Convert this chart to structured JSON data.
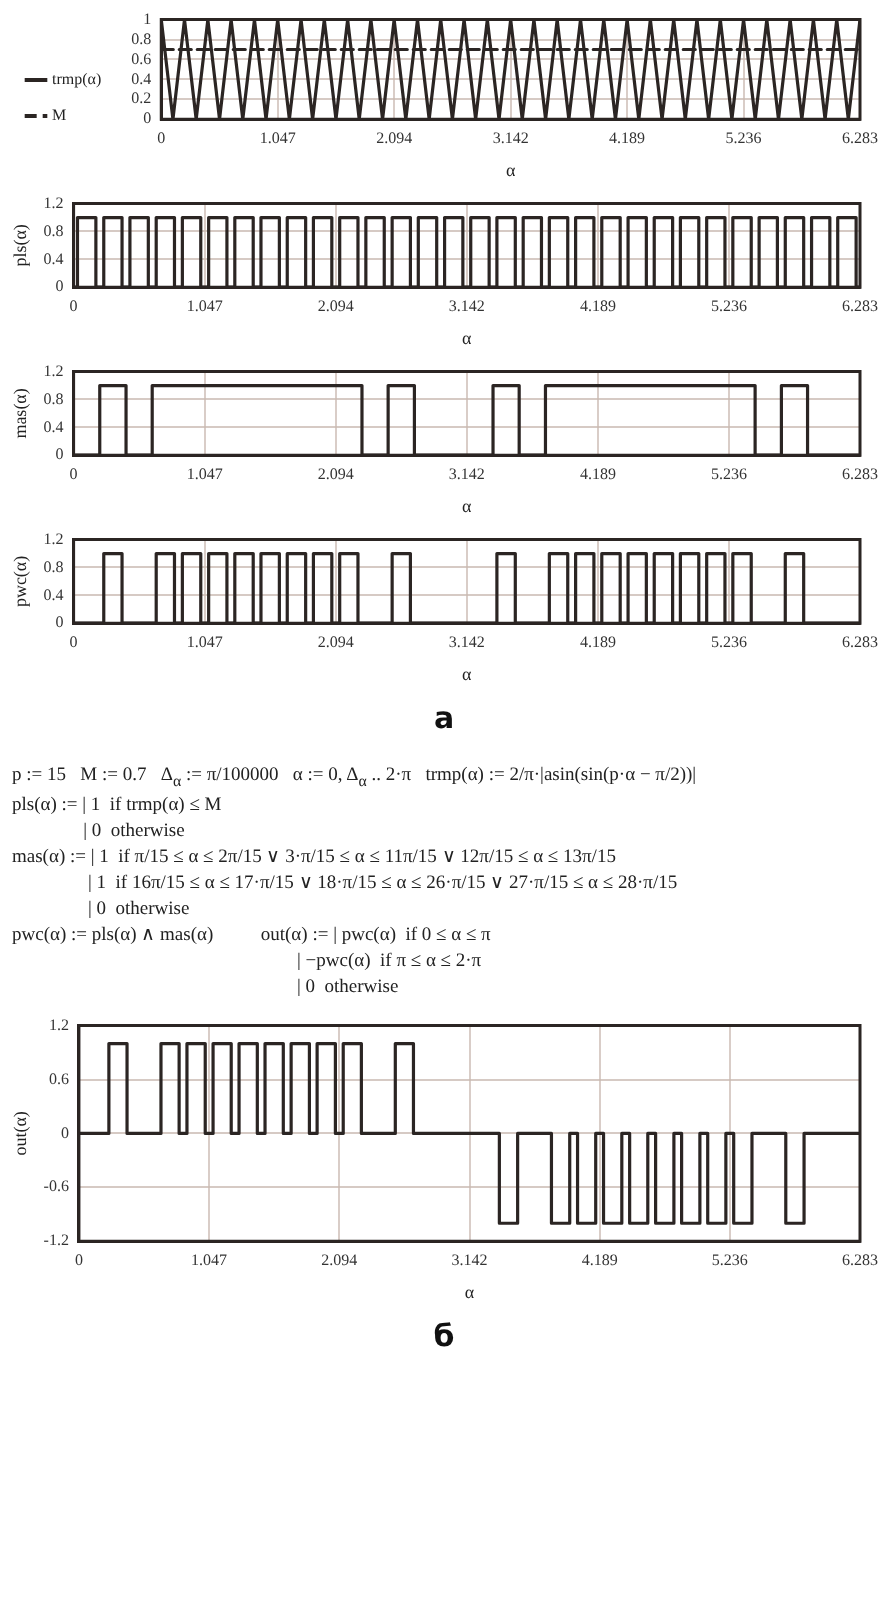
{
  "chart_data": [
    {
      "type": "line",
      "xlabel": "α",
      "legend": "left",
      "grid": true,
      "marker": "none",
      "xlim": [
        0,
        6.283
      ],
      "xticks": [
        0,
        1.047,
        2.094,
        3.142,
        4.189,
        5.236,
        6.283
      ],
      "ylim": [
        0,
        1
      ],
      "yticks": [
        0,
        0.2,
        0.4,
        0.6,
        0.8,
        1
      ],
      "series": [
        {
          "name": "trmp(α)",
          "color": "#2b2523",
          "line_style": "solid",
          "x": [
            0,
            0.105,
            0.209,
            0.314,
            0.419,
            0.524,
            0.628,
            0.733,
            0.838,
            0.942,
            1.047,
            1.152,
            1.257,
            1.361,
            1.466,
            1.571,
            1.676,
            1.78,
            1.885,
            1.99,
            2.094,
            2.199,
            2.304,
            2.409,
            2.513,
            2.618,
            2.723,
            2.827,
            2.932,
            3.037,
            3.142,
            3.246,
            3.351,
            3.456,
            3.56,
            3.665,
            3.77,
            3.875,
            3.979,
            4.084,
            4.189,
            4.294,
            4.398,
            4.503,
            4.608,
            4.712,
            4.817,
            4.922,
            5.027,
            5.131,
            5.236,
            5.341,
            5.445,
            5.55,
            5.655,
            5.76,
            5.864,
            5.969,
            6.074,
            6.178,
            6.283
          ],
          "values": [
            1,
            0,
            1,
            0,
            1,
            0,
            1,
            0,
            1,
            0,
            1,
            0,
            1,
            0,
            1,
            0,
            1,
            0,
            1,
            0,
            1,
            0,
            1,
            0,
            1,
            0,
            1,
            0,
            1,
            0,
            1,
            0,
            1,
            0,
            1,
            0,
            1,
            0,
            1,
            0,
            1,
            0,
            1,
            0,
            1,
            0,
            1,
            0,
            1,
            0,
            1,
            0,
            1,
            0,
            1,
            0,
            1,
            0,
            1,
            0,
            1
          ]
        },
        {
          "name": "M",
          "color": "#2b2523",
          "line_style": "dashed",
          "x": [
            0,
            6.283
          ],
          "values": [
            0.7,
            0.7
          ]
        }
      ]
    },
    {
      "type": "step",
      "ylabel": "pls(α)",
      "xlabel": "α",
      "legend": false,
      "grid": true,
      "marker": "none",
      "xlim": [
        0,
        6.283
      ],
      "xticks": [
        0,
        1.047,
        2.094,
        3.142,
        4.189,
        5.236,
        6.283
      ],
      "ylim": [
        0,
        1.2
      ],
      "yticks": [
        0,
        0.4,
        0.8,
        1.2
      ],
      "series": [
        {
          "color": "#2b2523",
          "x": [
            0,
            0.031,
            0.178,
            0.241,
            0.387,
            0.45,
            0.597,
            0.66,
            0.806,
            0.869,
            1.016,
            1.079,
            1.225,
            1.288,
            1.435,
            1.497,
            1.644,
            1.707,
            1.854,
            1.916,
            2.063,
            2.126,
            2.272,
            2.335,
            2.482,
            2.545,
            2.691,
            2.754,
            2.901,
            2.964,
            3.11,
            3.173,
            3.32,
            3.382,
            3.529,
            3.592,
            3.738,
            3.801,
            3.948,
            4.011,
            4.157,
            4.22,
            4.367,
            4.43,
            4.576,
            4.639,
            4.786,
            4.848,
            4.995,
            5.058,
            5.204,
            5.267,
            5.414,
            5.477,
            5.623,
            5.686,
            5.833,
            5.896,
            6.042,
            6.105,
            6.252,
            6.283
          ],
          "values": [
            0,
            1,
            0,
            1,
            0,
            1,
            0,
            1,
            0,
            1,
            0,
            1,
            0,
            1,
            0,
            1,
            0,
            1,
            0,
            1,
            0,
            1,
            0,
            1,
            0,
            1,
            0,
            1,
            0,
            1,
            0,
            1,
            0,
            1,
            0,
            1,
            0,
            1,
            0,
            1,
            0,
            1,
            0,
            1,
            0,
            1,
            0,
            1,
            0,
            1,
            0,
            1,
            0,
            1,
            0,
            1,
            0,
            1,
            0,
            1,
            0,
            0
          ]
        }
      ]
    },
    {
      "type": "step",
      "ylabel": "mas(α)",
      "xlabel": "α",
      "legend": false,
      "grid": true,
      "marker": "none",
      "xlim": [
        0,
        6.283
      ],
      "xticks": [
        0,
        1.047,
        2.094,
        3.142,
        4.189,
        5.236,
        6.283
      ],
      "ylim": [
        0,
        1.2
      ],
      "yticks": [
        0,
        0.4,
        0.8,
        1.2
      ],
      "series": [
        {
          "color": "#2b2523",
          "x": [
            0,
            0.209,
            0.419,
            0.628,
            2.304,
            2.513,
            2.723,
            3.351,
            3.56,
            3.77,
            5.445,
            5.655,
            5.864,
            6.283
          ],
          "values": [
            0,
            1,
            0,
            1,
            0,
            1,
            0,
            1,
            0,
            1,
            0,
            1,
            0,
            0
          ]
        }
      ]
    },
    {
      "type": "step",
      "ylabel": "pwc(α)",
      "xlabel": "α",
      "legend": false,
      "grid": true,
      "marker": "none",
      "xlim": [
        0,
        6.283
      ],
      "xticks": [
        0,
        1.047,
        2.094,
        3.142,
        4.189,
        5.236,
        6.283
      ],
      "ylim": [
        0,
        1.2
      ],
      "yticks": [
        0,
        0.4,
        0.8,
        1.2
      ],
      "annotations": [
        "а"
      ],
      "series": [
        {
          "color": "#2b2523",
          "x": [
            0,
            0.241,
            0.387,
            0.66,
            0.806,
            0.869,
            1.016,
            1.079,
            1.225,
            1.288,
            1.435,
            1.497,
            1.644,
            1.707,
            1.854,
            1.916,
            2.063,
            2.126,
            2.272,
            2.545,
            2.691,
            3.382,
            3.529,
            3.801,
            3.948,
            4.011,
            4.157,
            4.22,
            4.367,
            4.43,
            4.576,
            4.639,
            4.786,
            4.848,
            4.995,
            5.058,
            5.204,
            5.267,
            5.414,
            5.686,
            5.833,
            6.283
          ],
          "values": [
            0,
            1,
            0,
            1,
            0,
            1,
            0,
            1,
            0,
            1,
            0,
            1,
            0,
            1,
            0,
            1,
            0,
            1,
            0,
            1,
            0,
            1,
            0,
            1,
            0,
            1,
            0,
            1,
            0,
            1,
            0,
            1,
            0,
            1,
            0,
            1,
            0,
            1,
            0,
            1,
            0,
            0
          ]
        }
      ]
    },
    {
      "type": "step",
      "ylabel": "out(α)",
      "xlabel": "α",
      "legend": false,
      "grid": true,
      "marker": "none",
      "subtitle": "p := 15   M := 0.7   Δ$_{α}$ := π/100000   α := 0, Δ$_{α}$ .. 2·π   trmp(α) := 2/π·|asin(sin(p·α − π/2))|\npls(α) := | 1  if trmp(α) ≤ M\n               | 0  otherwise\nmas(α) := | 1  if π/15 ≤ α ≤ 2π/15 ∨ 3·π/15 ≤ α ≤ 11π/15 ∨ 12π/15 ≤ α ≤ 13π/15\n                | 1  if 16π/15 ≤ α ≤ 17·π/15 ∨ 18·π/15 ≤ α ≤ 26·π/15 ∨ 27·π/15 ≤ α ≤ 28·π/15\n                | 0  otherwise\npwc(α) := pls(α) ∧ mas(α)          out(α) := | pwc(α)  if 0 ≤ α ≤ π\n                                                            | −pwc(α)  if π ≤ α ≤ 2·π\n                                                            | 0  otherwise",
      "xlim": [
        0,
        6.283
      ],
      "xticks": [
        0,
        1.047,
        2.094,
        3.142,
        4.189,
        5.236,
        6.283
      ],
      "ylim": [
        -1.2,
        1.2
      ],
      "yticks": [
        -1.2,
        -0.6,
        0,
        0.6,
        1.2
      ],
      "annotations": [
        "б"
      ],
      "series": [
        {
          "color": "#2b2523",
          "x": [
            0,
            0.241,
            0.387,
            0.66,
            0.806,
            0.869,
            1.016,
            1.079,
            1.225,
            1.288,
            1.435,
            1.497,
            1.644,
            1.707,
            1.854,
            1.916,
            2.063,
            2.126,
            2.272,
            2.545,
            2.691,
            3.382,
            3.529,
            3.801,
            3.948,
            4.011,
            4.157,
            4.22,
            4.367,
            4.43,
            4.576,
            4.639,
            4.786,
            4.848,
            4.995,
            5.058,
            5.204,
            5.267,
            5.414,
            5.686,
            5.833,
            6.283
          ],
          "values": [
            0,
            1,
            0,
            1,
            0,
            1,
            0,
            1,
            0,
            1,
            0,
            1,
            0,
            1,
            0,
            1,
            0,
            1,
            0,
            1,
            0,
            -1,
            0,
            -1,
            0,
            -1,
            0,
            -1,
            0,
            -1,
            0,
            -1,
            0,
            -1,
            0,
            -1,
            0,
            -1,
            0,
            -1,
            0,
            0
          ]
        }
      ]
    }
  ]
}
